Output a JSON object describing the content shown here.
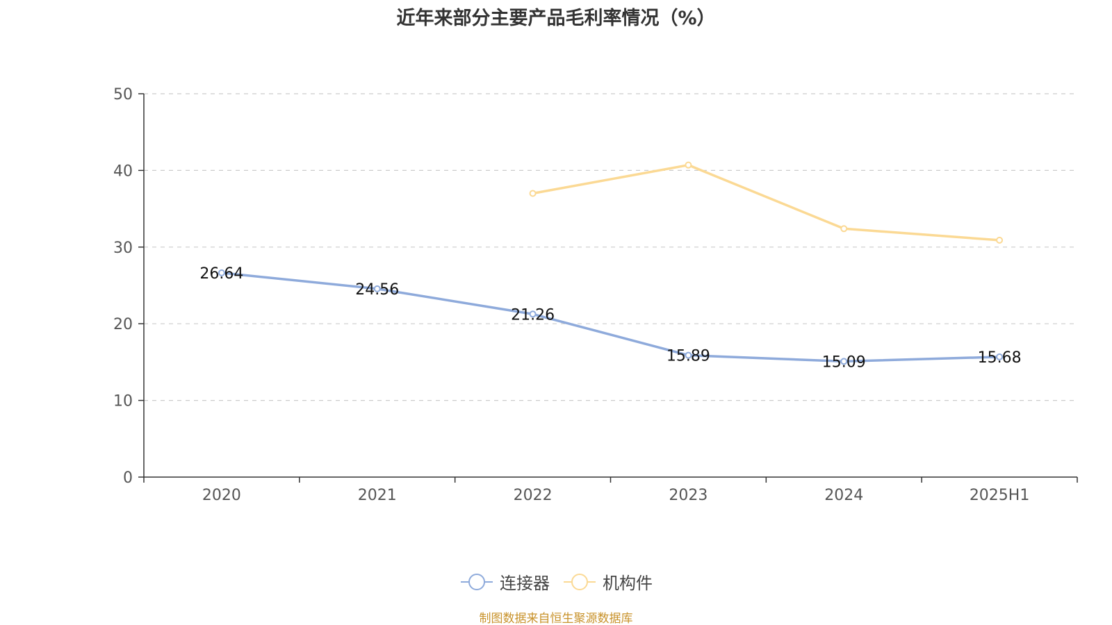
{
  "chart_data": {
    "type": "line",
    "title": "近年来部分主要产品毛利率情况（%）",
    "categories": [
      "2020",
      "2021",
      "2022",
      "2023",
      "2024",
      "2025H1"
    ],
    "ylim": [
      0,
      50
    ],
    "yticks": [
      0,
      10,
      20,
      30,
      40,
      50
    ],
    "grid": true,
    "legend_position": "bottom-center",
    "series": [
      {
        "name": "连接器",
        "color": "#8eaadb",
        "values": [
          26.64,
          24.56,
          21.26,
          15.89,
          15.09,
          15.68
        ],
        "labels": [
          "26.64",
          "24.56",
          "21.26",
          "15.89",
          "15.09",
          "15.68"
        ]
      },
      {
        "name": "机构件",
        "color": "#fbd994",
        "values": [
          null,
          null,
          37.0,
          40.7,
          32.4,
          30.9
        ],
        "labels": []
      }
    ]
  },
  "footer": {
    "source": "制图数据来自恒生聚源数据库",
    "source_color": "#c8922a"
  }
}
